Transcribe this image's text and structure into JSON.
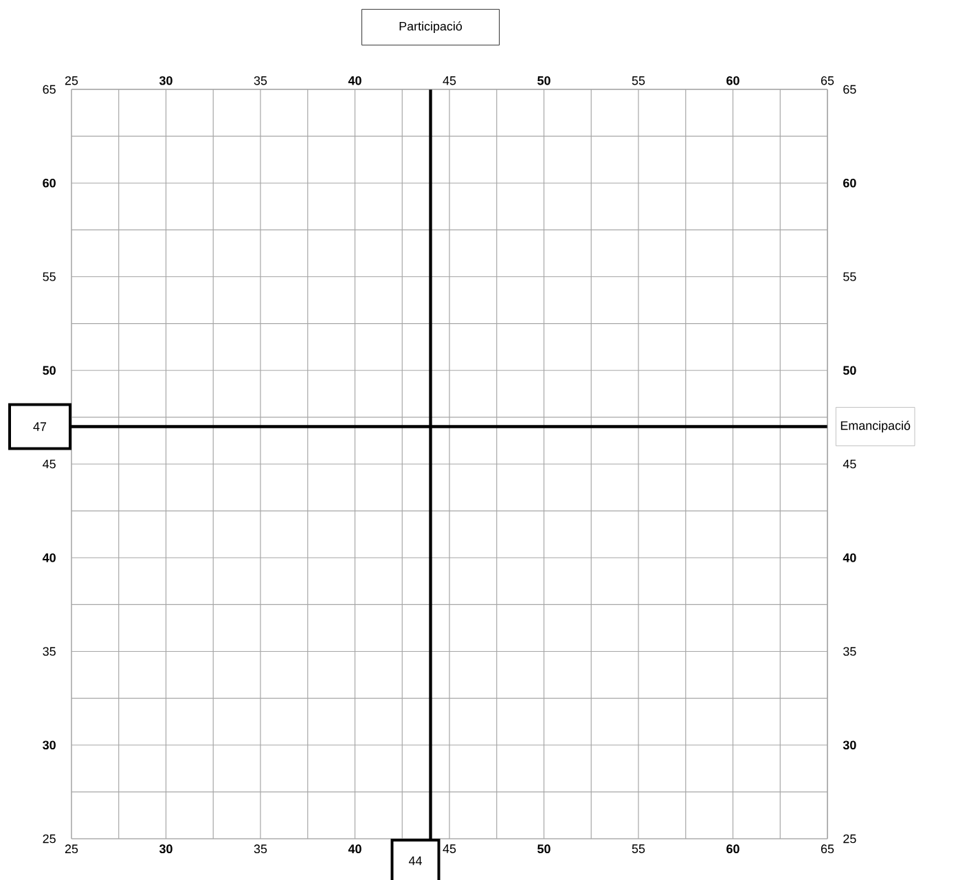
{
  "chart_data": {
    "type": "scatter",
    "x2label": "Participació",
    "y2label": "Emancipació",
    "xlim": [
      25,
      65
    ],
    "ylim": [
      25,
      65
    ],
    "x2lim": [
      25,
      65
    ],
    "y2lim": [
      25,
      65
    ],
    "xticks": [
      {
        "value": 25,
        "label": "25"
      },
      {
        "value": 30,
        "label": "**30**"
      },
      {
        "value": 35,
        "label": "35"
      },
      {
        "value": 40,
        "label": "**40**"
      },
      {
        "value": 45,
        "label": "45"
      },
      {
        "value": 50,
        "label": "**50**"
      },
      {
        "value": 55,
        "label": "55"
      },
      {
        "value": 60,
        "label": "**60**"
      },
      {
        "value": 65,
        "label": "65"
      }
    ],
    "x2ticks": [
      {
        "value": 25,
        "label": "25"
      },
      {
        "value": 30,
        "label": "**30**"
      },
      {
        "value": 35,
        "label": "35"
      },
      {
        "value": 40,
        "label": "**40**"
      },
      {
        "value": 45,
        "label": "45"
      },
      {
        "value": 50,
        "label": "**50**"
      },
      {
        "value": 55,
        "label": "55"
      },
      {
        "value": 60,
        "label": "**60**"
      },
      {
        "value": 65,
        "label": "65"
      }
    ],
    "yticks": [
      {
        "value": 25,
        "label": "25"
      },
      {
        "value": 30,
        "label": "**30**"
      },
      {
        "value": 35,
        "label": "35"
      },
      {
        "value": 40,
        "label": "**40**"
      },
      {
        "value": 45,
        "label": "45"
      },
      {
        "value": 50,
        "label": "**50**"
      },
      {
        "value": 55,
        "label": "55"
      },
      {
        "value": 60,
        "label": "**60**"
      },
      {
        "value": 65,
        "label": "65"
      }
    ],
    "y2ticks": [
      {
        "value": 25,
        "label": "25"
      },
      {
        "value": 30,
        "label": "**30**"
      },
      {
        "value": 35,
        "label": "35"
      },
      {
        "value": 40,
        "label": "**40**"
      },
      {
        "value": 45,
        "label": "45"
      },
      {
        "value": 50,
        "label": "**50**"
      },
      {
        "value": 55,
        "label": "55"
      },
      {
        "value": 60,
        "label": "**60**"
      },
      {
        "value": 65,
        "label": "65"
      }
    ],
    "grid": true,
    "ref_lines": [
      {
        "axis": "x",
        "value": 44,
        "label": "44"
      },
      {
        "axis": "y",
        "value": 47,
        "label": "47"
      }
    ]
  }
}
